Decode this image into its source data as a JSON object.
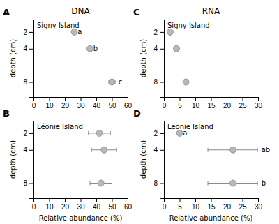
{
  "chart_data": [
    {
      "type": "scatter",
      "title": "DNA",
      "subtitle": "Signy Island",
      "annotations": [
        "A"
      ],
      "y_label": "depth (cm)",
      "xlim": [
        0,
        60
      ],
      "xticks": [
        0,
        10,
        20,
        30,
        40,
        50,
        60
      ],
      "ylim": [
        9.8,
        0.5
      ],
      "yticks": [
        2,
        4,
        8
      ],
      "series": [
        {
          "x": [
            26,
            36,
            50
          ],
          "values": [
            2,
            4,
            8
          ],
          "xerr": [
            0,
            0,
            2
          ],
          "labels": [
            "a",
            "b",
            "c"
          ],
          "color": "#b8b8b8"
        }
      ]
    },
    {
      "type": "scatter",
      "subtitle": "Léonie Island",
      "annotations": [
        "B"
      ],
      "x_label": "Relative abundance (%)",
      "y_label": "depth (cm)",
      "xlim": [
        0,
        60
      ],
      "xticks": [
        0,
        10,
        20,
        30,
        40,
        50,
        60
      ],
      "ylim": [
        9.8,
        0.5
      ],
      "yticks": [
        2,
        4,
        8
      ],
      "series": [
        {
          "x": [
            42,
            45,
            43
          ],
          "values": [
            2,
            4,
            8
          ],
          "xerr": [
            7,
            8,
            7
          ],
          "color": "#b8b8b8"
        }
      ]
    },
    {
      "type": "scatter",
      "title": "RNA",
      "subtitle": "Signy Island",
      "annotations": [
        "C"
      ],
      "y_label": "depth (cm)",
      "xlim": [
        0,
        30
      ],
      "xticks": [
        0,
        5,
        10,
        15,
        20,
        25,
        30
      ],
      "ylim": [
        9.8,
        0.5
      ],
      "yticks": [
        2,
        4,
        8
      ],
      "series": [
        {
          "x": [
            2,
            4,
            7
          ],
          "values": [
            2,
            4,
            8
          ],
          "xerr": [
            0,
            0,
            0
          ],
          "color": "#b8b8b8"
        }
      ]
    },
    {
      "type": "scatter",
      "subtitle": "Léonie Island",
      "annotations": [
        "D"
      ],
      "x_label": "Relative abundance (%)",
      "y_label": "depth (cm)",
      "xlim": [
        0,
        30
      ],
      "xticks": [
        0,
        5,
        10,
        15,
        20,
        25,
        30
      ],
      "ylim": [
        9.8,
        0.5
      ],
      "yticks": [
        2,
        4,
        8
      ],
      "series": [
        {
          "x": [
            5,
            22,
            22
          ],
          "values": [
            2,
            4,
            8
          ],
          "xerr": [
            0,
            8,
            8
          ],
          "labels": [
            "a",
            "ab",
            "b"
          ],
          "color": "#b8b8b8"
        }
      ]
    }
  ]
}
